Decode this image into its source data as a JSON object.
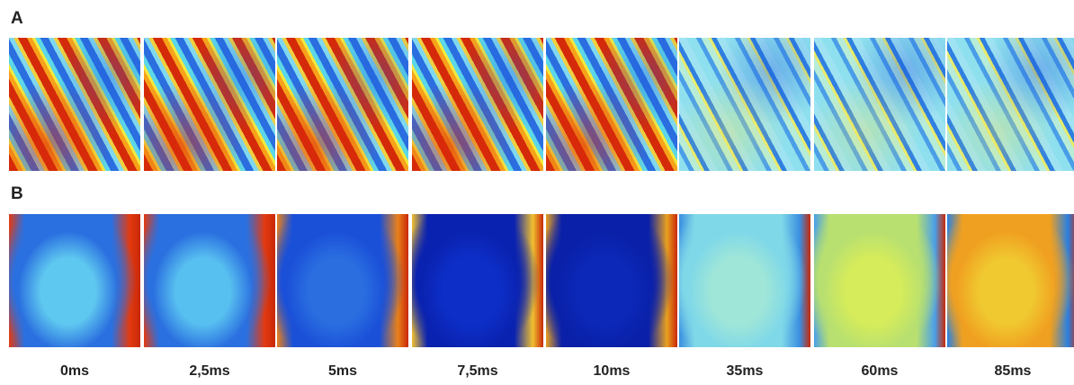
{
  "rows": [
    {
      "label": "A"
    },
    {
      "label": "B"
    }
  ],
  "time_labels": [
    "0ms",
    "2,5ms",
    "5ms",
    "7,5ms",
    "10ms",
    "35ms",
    "60ms",
    "85ms"
  ]
}
